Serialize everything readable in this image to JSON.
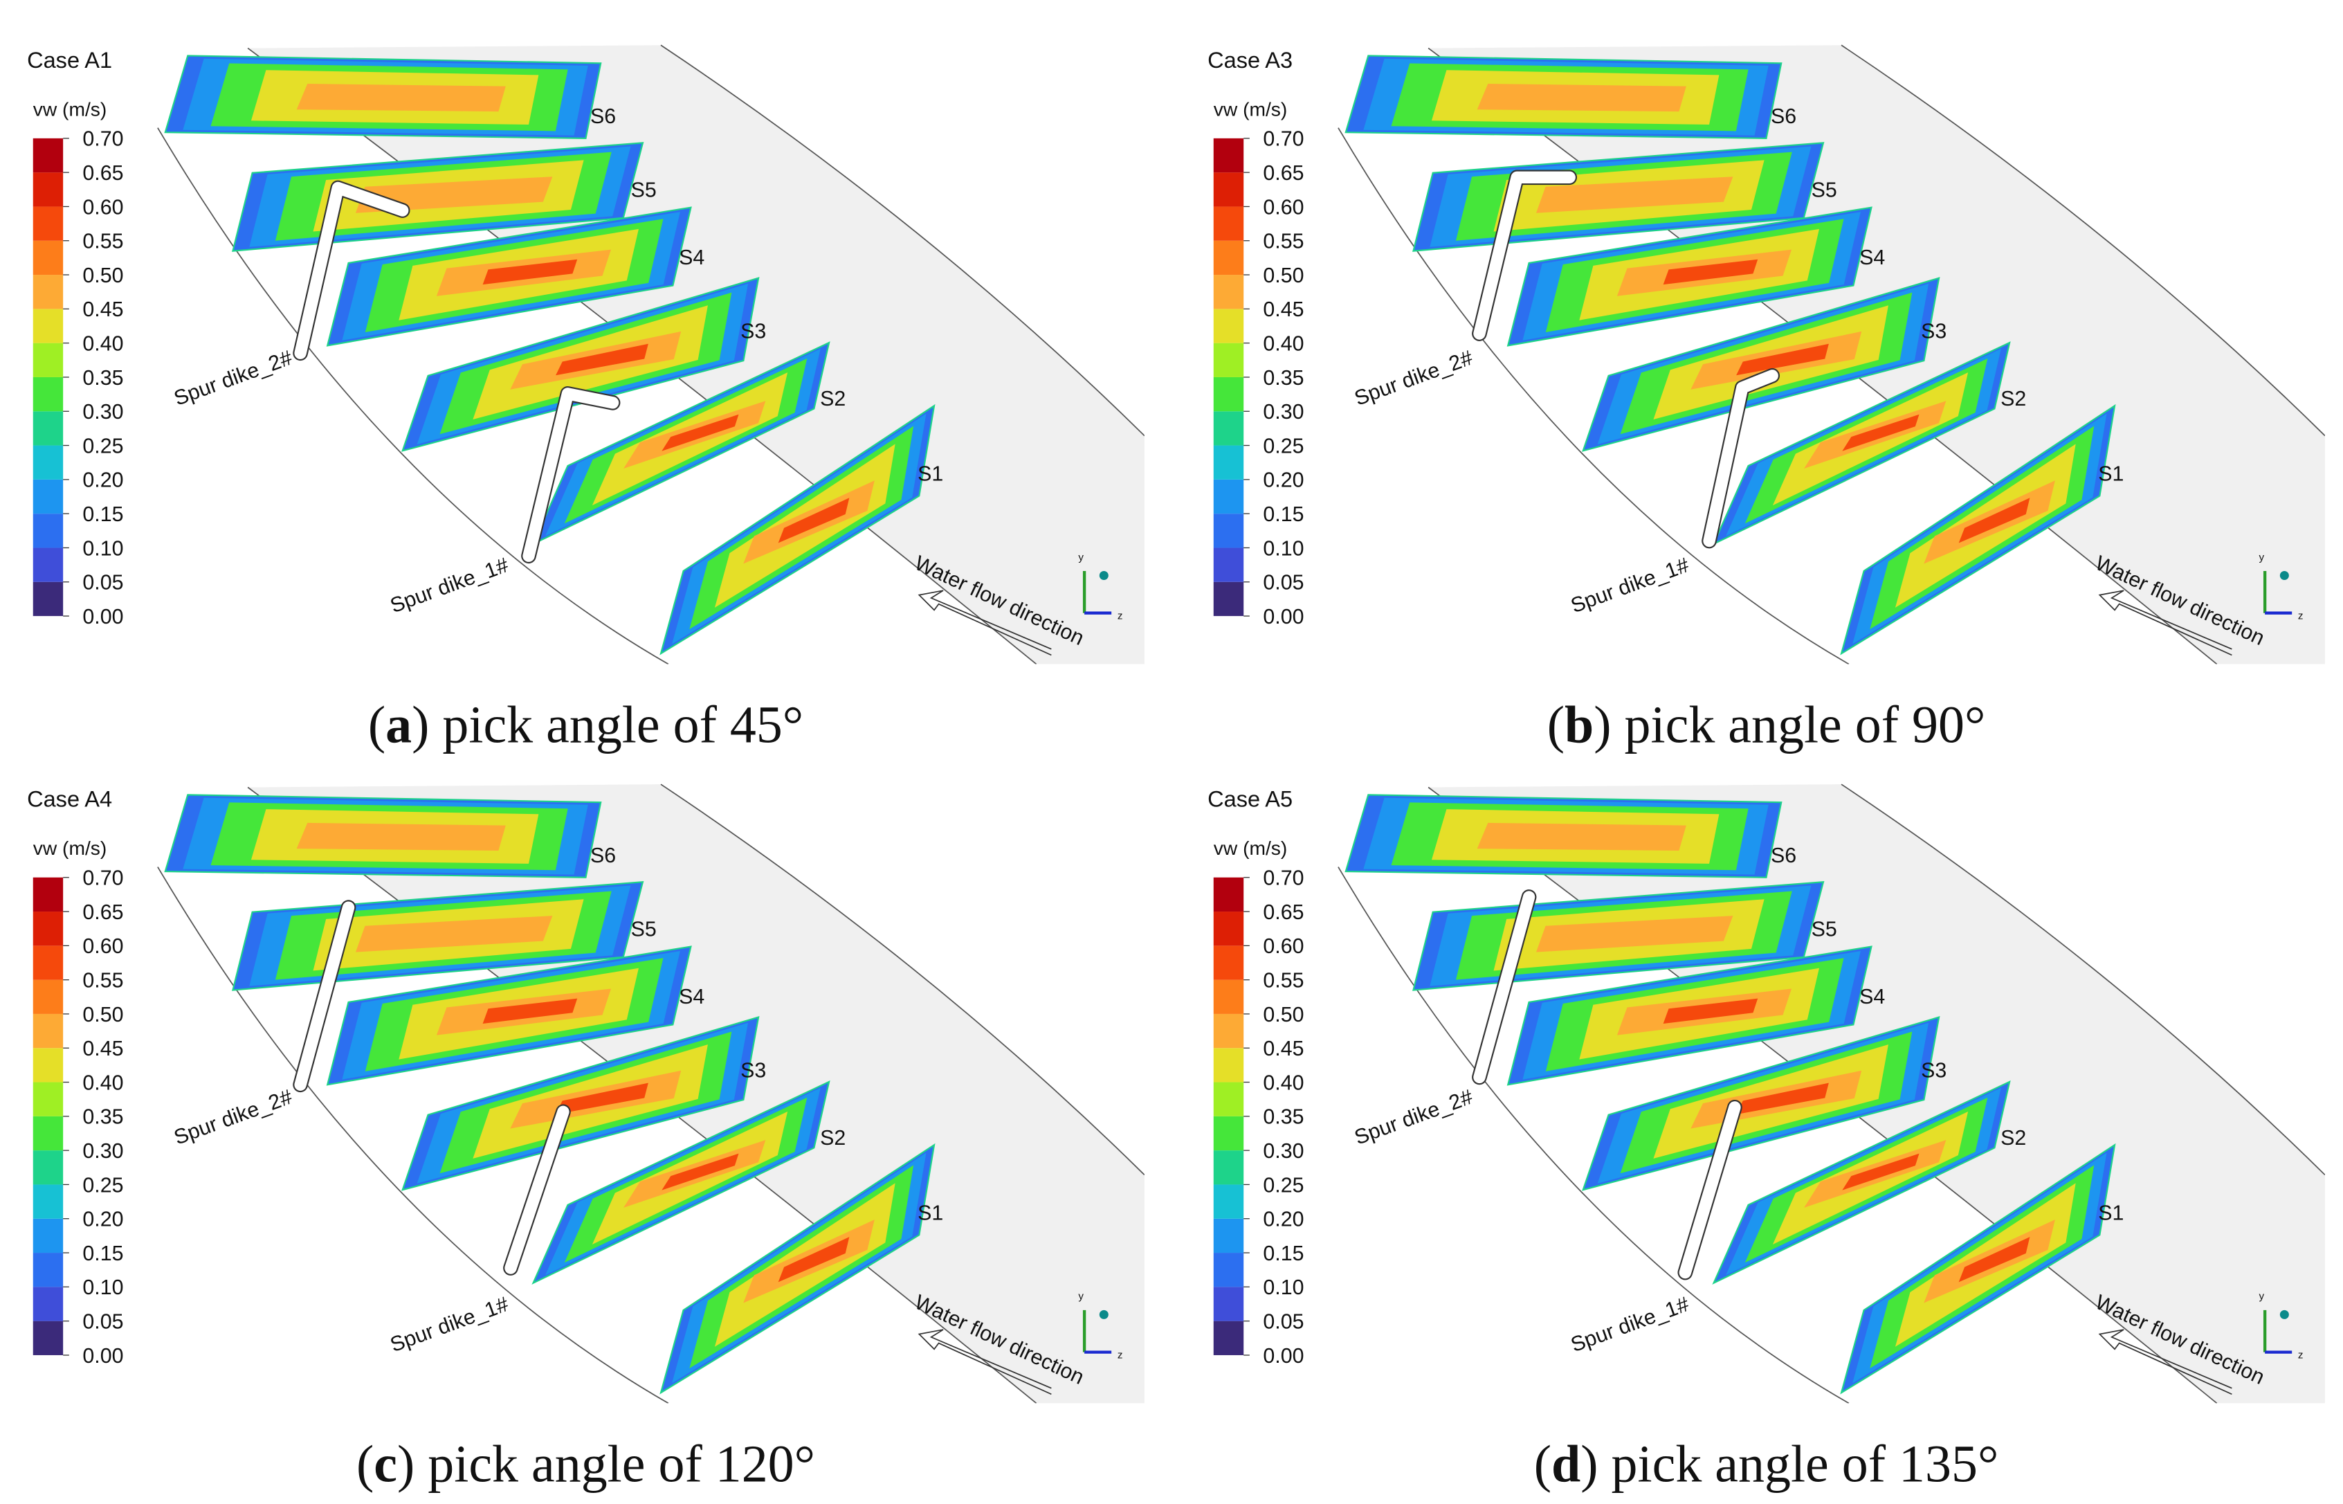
{
  "legend": {
    "title": "vw (m/s)",
    "ticks": [
      {
        "value": 0,
        "label": "0.00"
      },
      {
        "value": 0.05,
        "label": "0.05"
      },
      {
        "value": 0.1,
        "label": "0.10"
      },
      {
        "value": 0.15,
        "label": "0.15"
      },
      {
        "value": 0.2,
        "label": "0.20"
      },
      {
        "value": 0.25,
        "label": "0.25"
      },
      {
        "value": 0.3,
        "label": "0.30"
      },
      {
        "value": 0.35,
        "label": "0.35"
      },
      {
        "value": 0.4,
        "label": "0.40"
      },
      {
        "value": 0.45,
        "label": "0.45"
      },
      {
        "value": 0.5,
        "label": "0.50"
      },
      {
        "value": 0.55,
        "label": "0.55"
      },
      {
        "value": 0.6,
        "label": "0.60"
      },
      {
        "value": 0.65,
        "label": "0.65"
      },
      {
        "value": 0.7,
        "label": "0.70"
      }
    ],
    "colors": [
      "#3b2a7a",
      "#3f4ed9",
      "#2c6ff0",
      "#1d95f0",
      "#17c1d4",
      "#1ed38a",
      "#45e63a",
      "#9fef24",
      "#e5df28",
      "#fdaa35",
      "#fd7d1a",
      "#f5490c",
      "#dd1f05",
      "#b2000e"
    ]
  },
  "sections": [
    "S6",
    "S5",
    "S4",
    "S3",
    "S2",
    "S1"
  ],
  "dikes": [
    "Spur dike_2#",
    "Spur dike_1#"
  ],
  "flow_label": "Water flow direction",
  "axes": [
    "y",
    "z"
  ],
  "panels": [
    {
      "case": "Case A1",
      "caption": [
        "(",
        "a",
        ") pick angle of 45°"
      ]
    },
    {
      "case": "Case A3",
      "caption": [
        "(",
        "b",
        ") pick angle of 90°"
      ]
    },
    {
      "case": "Case A4",
      "caption": [
        "(",
        "c",
        ") pick angle of 120°"
      ]
    },
    {
      "case": "Case A5",
      "caption": [
        "(",
        "d",
        ") pick angle of 135°"
      ]
    }
  ]
}
